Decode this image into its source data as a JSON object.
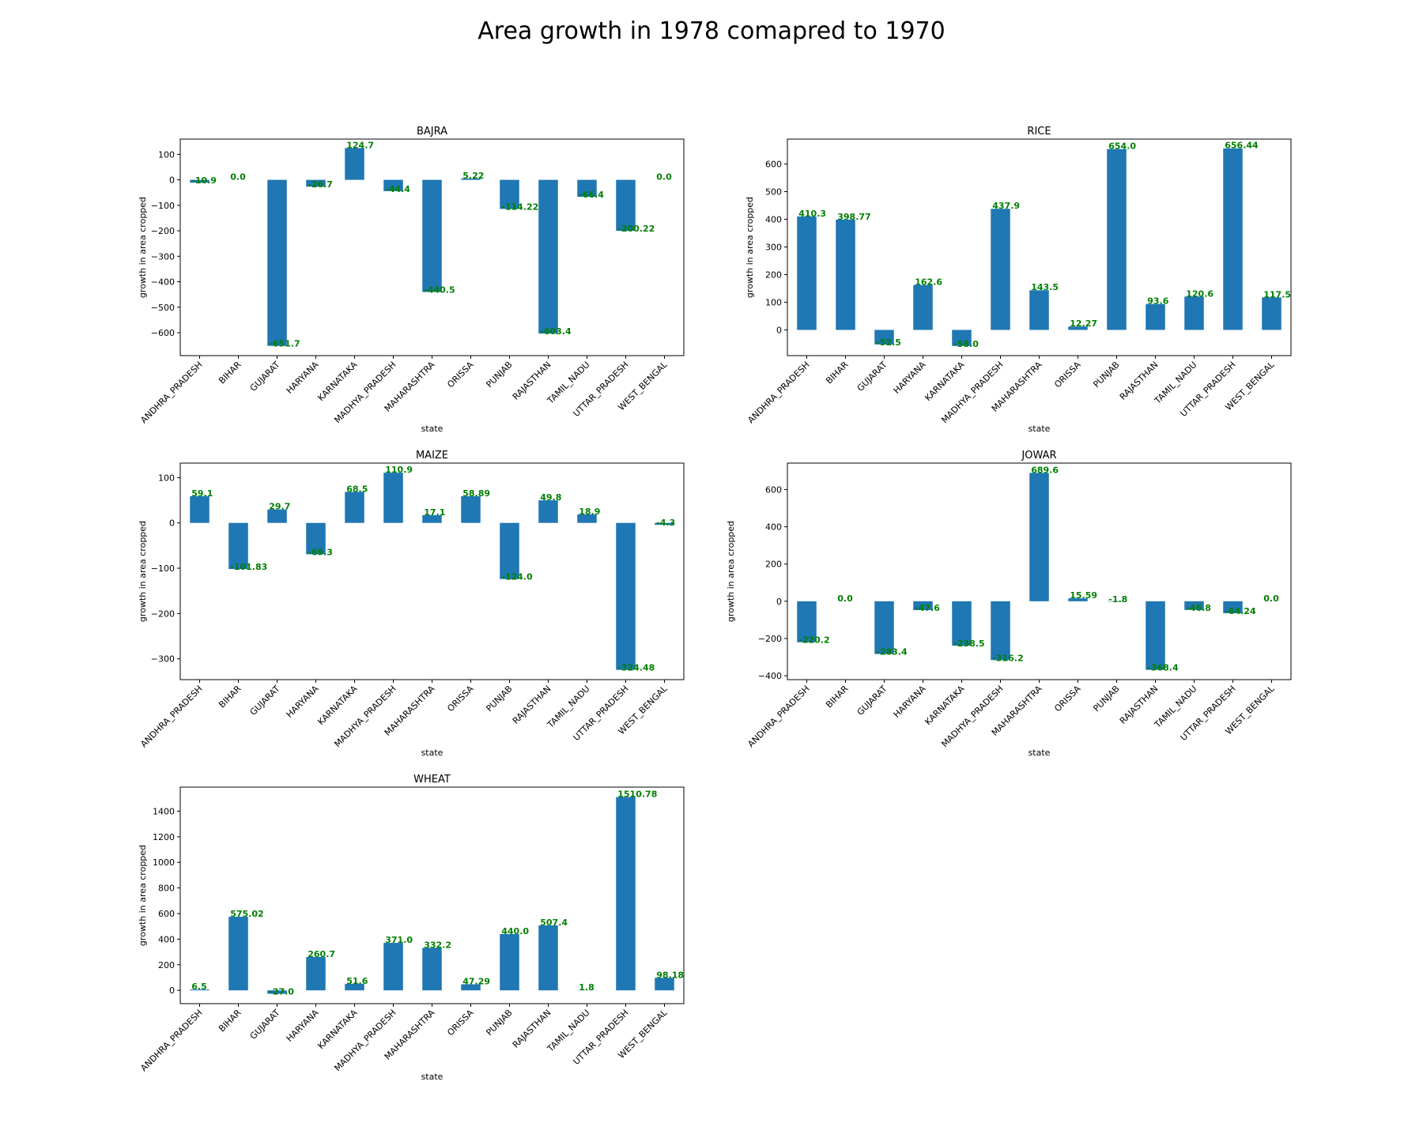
{
  "title": "Area growth in 1978 comapred to 1970",
  "colors": {
    "bar": "#1f77b4",
    "label": "#008000"
  },
  "chart_data": [
    {
      "type": "bar",
      "title": "BAJRA",
      "xlabel": "state",
      "ylabel": "growth in area cropped",
      "categories": [
        "ANDHRA_PRADESH",
        "BIHAR",
        "GUJARAT",
        "HARYANA",
        "KARNATAKA",
        "MADHYA_PRADESH",
        "MAHARASHTRA",
        "ORISSA",
        "PUNJAB",
        "RAJASTHAN",
        "TAMIL_NADU",
        "UTTAR_PRADESH",
        "WEST_BENGAL"
      ],
      "values": [
        -10.9,
        0.0,
        -651.7,
        -26.7,
        124.7,
        -44.4,
        -440.5,
        5.22,
        -114.22,
        -603.4,
        -66.4,
        -200.22,
        0.0
      ],
      "value_labels": [
        "-10.9",
        "0.0",
        "-651.7",
        "-26.7",
        "124.7",
        "-44.4",
        "-440.5",
        "5.22",
        "-114.22",
        "-603.4",
        "-66.4",
        "-200.22",
        "0.0"
      ],
      "ylim": [
        -690,
        160
      ],
      "yticks": [
        100,
        0,
        -100,
        -200,
        -300,
        -400,
        -500,
        -600
      ],
      "ytick_labels": [
        "100",
        "0",
        "−100",
        "−200",
        "−300",
        "−400",
        "−500",
        "−600"
      ]
    },
    {
      "type": "bar",
      "title": "RICE",
      "xlabel": "state",
      "ylabel": "growth in area cropped",
      "categories": [
        "ANDHRA_PRADESH",
        "BIHAR",
        "GUJARAT",
        "HARYANA",
        "KARNATAKA",
        "MADHYA_PRADESH",
        "MAHARASHTRA",
        "ORISSA",
        "PUNJAB",
        "RAJASTHAN",
        "TAMIL_NADU",
        "UTTAR_PRADESH",
        "WEST_BENGAL"
      ],
      "values": [
        410.3,
        398.77,
        -52.5,
        162.6,
        -58.0,
        437.9,
        143.5,
        12.27,
        654.0,
        93.6,
        120.6,
        656.44,
        117.5
      ],
      "value_labels": [
        "410.3",
        "398.77",
        "-52.5",
        "162.6",
        "-58.0",
        "437.9",
        "143.5",
        "12.27",
        "654.0",
        "93.6",
        "120.6",
        "656.44",
        "117.5"
      ],
      "ylim": [
        -93,
        690
      ],
      "yticks": [
        600,
        500,
        400,
        300,
        200,
        100,
        0
      ],
      "ytick_labels": [
        "600",
        "500",
        "400",
        "300",
        "200",
        "100",
        "0"
      ]
    },
    {
      "type": "bar",
      "title": "MAIZE",
      "xlabel": "state",
      "ylabel": "growth in area cropped",
      "categories": [
        "ANDHRA_PRADESH",
        "BIHAR",
        "GUJARAT",
        "HARYANA",
        "KARNATAKA",
        "MADHYA_PRADESH",
        "MAHARASHTRA",
        "ORISSA",
        "PUNJAB",
        "RAJASTHAN",
        "TAMIL_NADU",
        "UTTAR_PRADESH",
        "WEST_BENGAL"
      ],
      "values": [
        59.1,
        -101.83,
        29.7,
        -69.3,
        68.5,
        110.9,
        17.1,
        58.89,
        -124.0,
        49.8,
        18.9,
        -324.48,
        -4.3
      ],
      "value_labels": [
        "59.1",
        "-101.83",
        "29.7",
        "-69.3",
        "68.5",
        "110.9",
        "17.1",
        "58.89",
        "-124.0",
        "49.8",
        "18.9",
        "-324.48",
        "-4.3"
      ],
      "ylim": [
        -346,
        132
      ],
      "yticks": [
        100,
        0,
        -100,
        -200,
        -300
      ],
      "ytick_labels": [
        "100",
        "0",
        "−100",
        "−200",
        "−300"
      ]
    },
    {
      "type": "bar",
      "title": "JOWAR",
      "xlabel": "state",
      "ylabel": "growth in area cropped",
      "categories": [
        "ANDHRA_PRADESH",
        "BIHAR",
        "GUJARAT",
        "HARYANA",
        "KARNATAKA",
        "MADHYA_PRADESH",
        "MAHARASHTRA",
        "ORISSA",
        "PUNJAB",
        "RAJASTHAN",
        "TAMIL_NADU",
        "UTTAR_PRADESH",
        "WEST_BENGAL"
      ],
      "values": [
        -220.2,
        0.0,
        -283.4,
        -47.6,
        -238.5,
        -316.2,
        689.6,
        15.59,
        -1.8,
        -368.4,
        -46.8,
        -64.24,
        0.0
      ],
      "value_labels": [
        "-220.2",
        "0.0",
        "-283.4",
        "-47.6",
        "-238.5",
        "-316.2",
        "689.6",
        "15.59",
        "-1.8",
        "-368.4",
        "-46.8",
        "-64.24",
        "0.0"
      ],
      "ylim": [
        -421,
        742
      ],
      "yticks": [
        600,
        400,
        200,
        0,
        -200,
        -400
      ],
      "ytick_labels": [
        "600",
        "400",
        "200",
        "0",
        "−200",
        "−400"
      ]
    },
    {
      "type": "bar",
      "title": "WHEAT",
      "xlabel": "state",
      "ylabel": "growth in area cropped",
      "categories": [
        "ANDHRA_PRADESH",
        "BIHAR",
        "GUJARAT",
        "HARYANA",
        "KARNATAKA",
        "MADHYA_PRADESH",
        "MAHARASHTRA",
        "ORISSA",
        "PUNJAB",
        "RAJASTHAN",
        "TAMIL_NADU",
        "UTTAR_PRADESH",
        "WEST_BENGAL"
      ],
      "values": [
        6.5,
        575.02,
        -27.0,
        260.7,
        51.6,
        371.0,
        332.2,
        47.29,
        440.0,
        507.4,
        1.8,
        1510.78,
        98.18
      ],
      "value_labels": [
        "6.5",
        "575.02",
        "-27.0",
        "260.7",
        "51.6",
        "371.0",
        "332.2",
        "47.29",
        "440.0",
        "507.4",
        "1.8",
        "1510.78",
        "98.18"
      ],
      "ylim": [
        -104,
        1588
      ],
      "yticks": [
        1400,
        1200,
        1000,
        800,
        600,
        400,
        200,
        0
      ],
      "ytick_labels": [
        "1400",
        "1200",
        "1000",
        "800",
        "600",
        "400",
        "200",
        "0"
      ]
    }
  ]
}
